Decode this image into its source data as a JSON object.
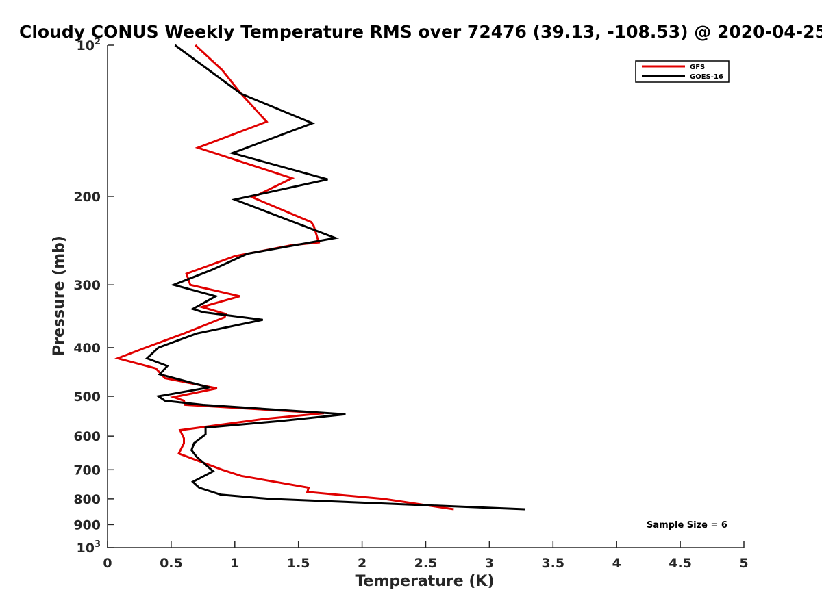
{
  "chart_data": {
    "type": "line",
    "title": "Cloudy CONUS Weekly Temperature RMS over 72476 (39.13, -108.53) @ 2020-04-25",
    "xlabel": "Temperature (K)",
    "ylabel": "Pressure (mb)",
    "xlim": [
      0,
      5
    ],
    "ylim": [
      100,
      1000
    ],
    "y_scale": "log",
    "y_reversed": true,
    "grid": false,
    "legend_position": "top-right",
    "x_ticks": [
      0,
      0.5,
      1,
      1.5,
      2,
      2.5,
      3,
      3.5,
      4,
      4.5,
      5
    ],
    "x_tick_labels": [
      "0",
      "0.5",
      "1",
      "1.5",
      "2",
      "2.5",
      "3",
      "3.5",
      "4",
      "4.5",
      "5"
    ],
    "y_ticks": [
      100,
      200,
      300,
      400,
      500,
      600,
      700,
      800,
      900,
      1000
    ],
    "y_tick_labels": [
      {
        "base": "10",
        "exp": "2"
      },
      {
        "base": "200",
        "exp": ""
      },
      {
        "base": "300",
        "exp": ""
      },
      {
        "base": "400",
        "exp": ""
      },
      {
        "base": "500",
        "exp": ""
      },
      {
        "base": "600",
        "exp": ""
      },
      {
        "base": "700",
        "exp": ""
      },
      {
        "base": "800",
        "exp": ""
      },
      {
        "base": "900",
        "exp": ""
      },
      {
        "base": "10",
        "exp": "3"
      }
    ],
    "annotation": "Sample Size = 6",
    "series": [
      {
        "name": "GFS",
        "color": "#e00000",
        "points": [
          [
            0.69,
            100
          ],
          [
            0.9,
            112
          ],
          [
            1.05,
            125
          ],
          [
            1.25,
            142
          ],
          [
            0.71,
            160
          ],
          [
            1.45,
            184
          ],
          [
            1.14,
            201
          ],
          [
            1.6,
            225
          ],
          [
            1.62,
            229
          ],
          [
            1.66,
            247
          ],
          [
            1.45,
            250
          ],
          [
            1.0,
            263
          ],
          [
            0.62,
            285
          ],
          [
            0.65,
            300
          ],
          [
            1.04,
            316
          ],
          [
            0.74,
            332
          ],
          [
            0.93,
            343
          ],
          [
            0.92,
            348
          ],
          [
            0.6,
            375
          ],
          [
            0.3,
            400
          ],
          [
            0.08,
            420
          ],
          [
            0.38,
            440
          ],
          [
            0.45,
            460
          ],
          [
            0.86,
            482
          ],
          [
            0.52,
            502
          ],
          [
            0.6,
            510
          ],
          [
            0.61,
            520
          ],
          [
            1.7,
            540
          ],
          [
            1.22,
            555
          ],
          [
            0.57,
            584
          ],
          [
            0.6,
            606
          ],
          [
            0.6,
            620
          ],
          [
            0.56,
            650
          ],
          [
            0.9,
            700
          ],
          [
            1.05,
            720
          ],
          [
            1.58,
            760
          ],
          [
            1.57,
            775
          ],
          [
            2.17,
            800
          ],
          [
            2.72,
            839
          ]
        ]
      },
      {
        "name": "GOES-16",
        "color": "#000000",
        "points": [
          [
            0.53,
            100
          ],
          [
            1.05,
            125
          ],
          [
            1.61,
            143
          ],
          [
            0.98,
            164
          ],
          [
            1.73,
            185
          ],
          [
            1.0,
            203
          ],
          [
            1.79,
            242
          ],
          [
            1.1,
            260
          ],
          [
            0.82,
            280
          ],
          [
            0.52,
            300
          ],
          [
            0.85,
            316
          ],
          [
            0.67,
            335
          ],
          [
            0.75,
            340
          ],
          [
            1.22,
            352
          ],
          [
            0.7,
            375
          ],
          [
            0.4,
            400
          ],
          [
            0.31,
            420
          ],
          [
            0.47,
            435
          ],
          [
            0.41,
            452
          ],
          [
            0.8,
            480
          ],
          [
            0.4,
            500
          ],
          [
            0.45,
            510
          ],
          [
            0.75,
            520
          ],
          [
            1.87,
            543
          ],
          [
            1.35,
            560
          ],
          [
            0.77,
            577
          ],
          [
            0.77,
            595
          ],
          [
            0.68,
            620
          ],
          [
            0.66,
            640
          ],
          [
            0.7,
            660
          ],
          [
            0.83,
            705
          ],
          [
            0.67,
            740
          ],
          [
            0.72,
            760
          ],
          [
            0.89,
            785
          ],
          [
            1.28,
            800
          ],
          [
            3.28,
            839
          ]
        ]
      }
    ]
  }
}
